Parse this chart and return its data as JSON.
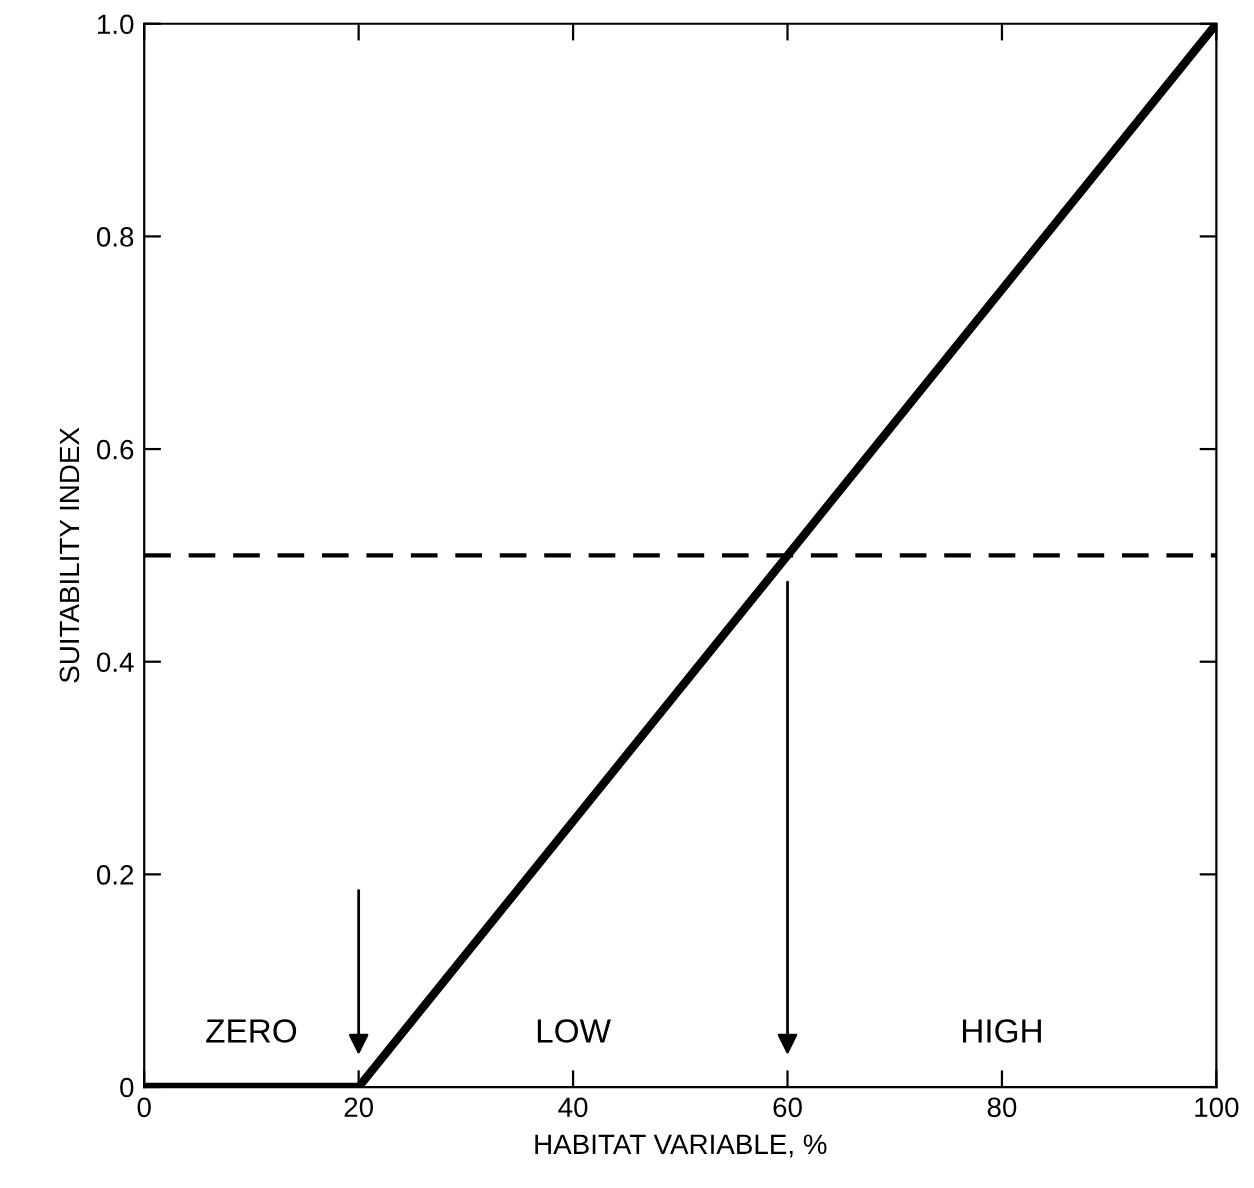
{
  "chart_data": {
    "type": "line",
    "xlabel": "HABITAT VARIABLE, %",
    "ylabel": "SUITABILITY INDEX",
    "x": [
      0,
      20,
      100
    ],
    "series": [
      {
        "color": "#000000",
        "values": [
          0,
          0,
          1
        ]
      }
    ],
    "xlim": [
      0,
      100
    ],
    "ylim": [
      0,
      1.0
    ],
    "xticks": [
      0,
      20,
      40,
      60,
      80,
      100
    ],
    "yticks": [
      0,
      0.2,
      0.4,
      0.6,
      0.8,
      {
        "value": 1,
        "label": "1.0"
      }
    ],
    "ref_lines": [
      {
        "axis": "y",
        "value": 0.5,
        "color": "#000000",
        "line_style": "dashed"
      }
    ],
    "annotations": [
      "ZERO",
      "LOW",
      "HIGH"
    ],
    "grid": false,
    "legend": false,
    "marker": "none",
    "line_style": "solid"
  }
}
